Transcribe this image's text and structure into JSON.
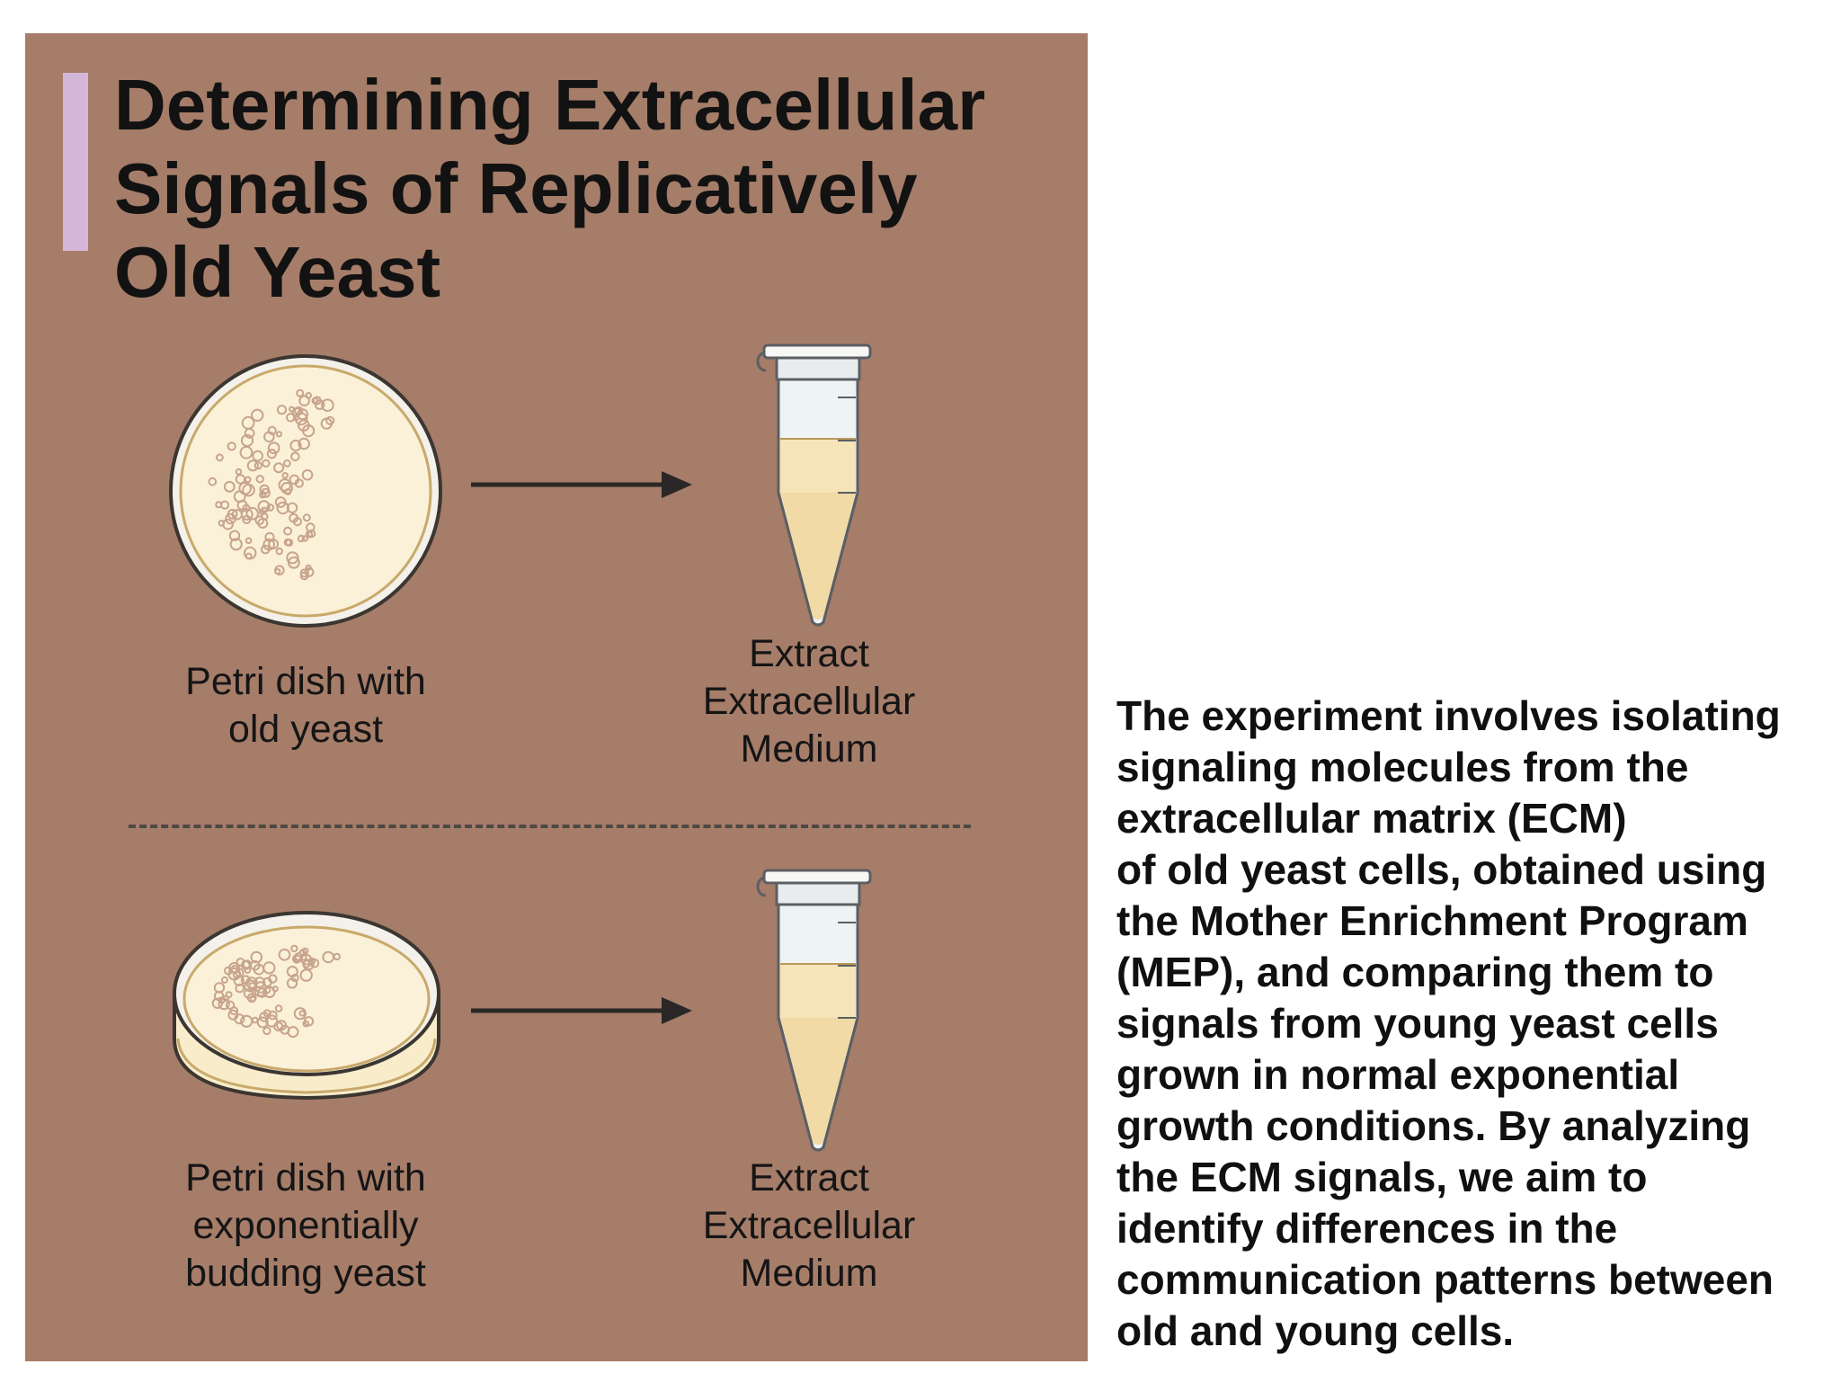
{
  "title": {
    "lines": [
      "Determining Extracellular",
      "Signals of Replicatively",
      "Old Yeast"
    ]
  },
  "steps": {
    "old": {
      "dish_caption": [
        "Petri dish with",
        "old yeast"
      ],
      "tube_caption": [
        "Extract",
        "Extracellular",
        "Medium"
      ]
    },
    "young": {
      "dish_caption": [
        "Petri dish with",
        "exponentially",
        "budding yeast"
      ],
      "tube_caption": [
        "Extract",
        "Extracellular",
        "Medium"
      ]
    }
  },
  "description": {
    "lines": [
      "The experiment involves isolating",
      "signaling molecules from the",
      "extracellular matrix (ECM)",
      "of old yeast cells, obtained using",
      "the Mother Enrichment Program",
      "(MEP), and comparing them to",
      "signals from young yeast cells",
      "grown in normal exponential",
      "growth conditions. By analyzing",
      "the ECM signals, we aim to",
      "identify differences in the",
      "communication patterns between",
      "old and young cells."
    ]
  },
  "icons": {
    "dish_old": "petri-dish-top-view-icon",
    "dish_young": "petri-dish-side-view-icon",
    "arrow": "arrow-right-icon",
    "tube": "microcentrifuge-tube-icon"
  },
  "colors": {
    "panel_background": "#a67d69",
    "accent_bar": "#d4b7d8",
    "medium": "#f5e4b8",
    "text": "#121212"
  }
}
